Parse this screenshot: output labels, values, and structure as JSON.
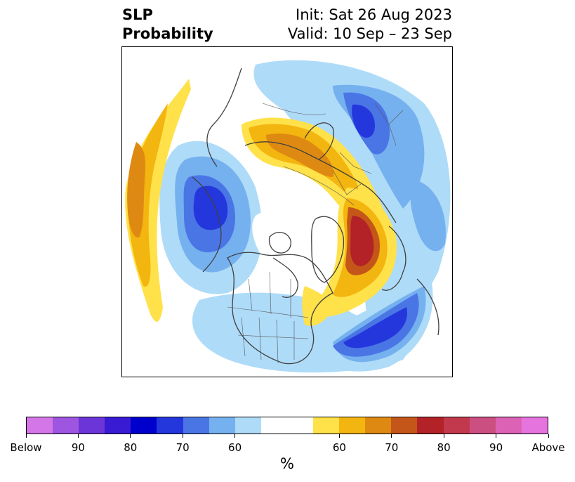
{
  "title": {
    "left_line1": "SLP",
    "left_line2": "Probability",
    "right_line1": "Init: Sat 26 Aug 2023",
    "right_line2": "Valid: 10 Sep – 23 Sep"
  },
  "map": {
    "projection": "north polar stereographic",
    "field": "SLP probability",
    "features": [
      "coastlines",
      "country borders",
      "US state borders",
      "Canadian province borders"
    ],
    "anomalies": [
      {
        "region": "North Pacific / Aleutians",
        "category": "Above",
        "max_level": "70"
      },
      {
        "region": "Scandinavia / Western Russia",
        "category": "Above",
        "max_level": "70"
      },
      {
        "region": "Greenland / Labrador Sea",
        "category": "Above",
        "max_level": "80"
      },
      {
        "region": "Eastern Siberia",
        "category": "Below",
        "max_level": "70"
      },
      {
        "region": "Bering Sea / Alaska",
        "category": "Below",
        "max_level": "70"
      },
      {
        "region": "Western North Atlantic",
        "category": "Below",
        "max_level": "70"
      }
    ]
  },
  "colorbar": {
    "colors": [
      "#d576e8",
      "#9e55e0",
      "#6c35d8",
      "#3a1bd4",
      "#0000cd",
      "#2437dc",
      "#4a75e5",
      "#76b1ef",
      "#aedbf8",
      "#ffffff",
      "#ffffff",
      "#ffe14a",
      "#f3b50f",
      "#de8a12",
      "#c4561a",
      "#b32226",
      "#c2394d",
      "#cc4f82",
      "#dc62b5",
      "#e674de"
    ],
    "tick_labels": [
      "Below",
      "90",
      "80",
      "70",
      "60",
      "60",
      "70",
      "80",
      "90",
      "Above"
    ],
    "unit": "%"
  }
}
